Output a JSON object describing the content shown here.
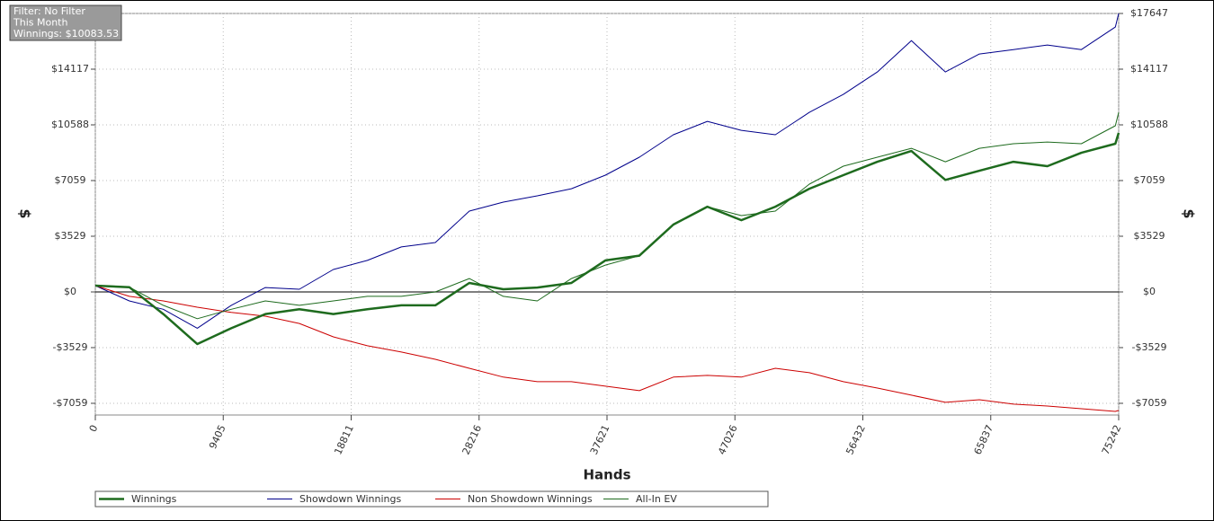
{
  "chart_data": {
    "type": "line",
    "filter": [
      "Filter: No Filter",
      "This Month",
      "Winnings: $10083.53"
    ],
    "x_label": "Hands",
    "y_label": "$",
    "x": [
      0,
      2500,
      5000,
      7500,
      10000,
      12500,
      15000,
      17500,
      20000,
      22500,
      25000,
      27500,
      30000,
      32500,
      35000,
      37500,
      40000,
      42500,
      45000,
      47500,
      50000,
      52500,
      55000,
      57500,
      60000,
      62500,
      65000,
      67500,
      70000,
      72500,
      75000,
      75242
    ],
    "series": [
      {
        "name": "Winnings",
        "color": "#1e6b1e",
        "width": 2.5,
        "values": [
          400,
          300,
          -1400,
          -3300,
          -2300,
          -1400,
          -1100,
          -1400,
          -1100,
          -850,
          -850,
          570,
          170,
          280,
          570,
          2000,
          2300,
          4270,
          5400,
          4550,
          5400,
          6540,
          7400,
          8250,
          8930,
          7100,
          7680,
          8250,
          7970,
          8820,
          9390,
          10083
        ]
      },
      {
        "name": "Showdown Winnings",
        "color": "#00008b",
        "width": 1,
        "values": [
          400,
          -570,
          -1100,
          -2300,
          -850,
          280,
          170,
          1420,
          2000,
          2850,
          3130,
          5120,
          5690,
          6090,
          6540,
          7400,
          8540,
          9960,
          10810,
          10240,
          9960,
          11380,
          12520,
          13940,
          15930,
          13940,
          15080,
          15360,
          15650,
          15360,
          16790,
          17647
        ]
      },
      {
        "name": "Non Showdown Winnings",
        "color": "#cc0000",
        "width": 1,
        "values": [
          400,
          -280,
          -570,
          -970,
          -1300,
          -1540,
          -2000,
          -2850,
          -3410,
          -3810,
          -4270,
          -4840,
          -5400,
          -5690,
          -5690,
          -5970,
          -6260,
          -5400,
          -5290,
          -5400,
          -4840,
          -5120,
          -5690,
          -6090,
          -6540,
          -7000,
          -6830,
          -7110,
          -7230,
          -7400,
          -7570,
          -7510
        ]
      },
      {
        "name": "All-In EV",
        "color": "#1e6b1e",
        "width": 1,
        "values": [
          400,
          300,
          -850,
          -1700,
          -1100,
          -570,
          -850,
          -570,
          -280,
          -280,
          0,
          850,
          -280,
          -570,
          850,
          1700,
          2300,
          4270,
          5400,
          4840,
          5120,
          6830,
          7970,
          8540,
          9100,
          8250,
          9100,
          9390,
          9500,
          9390,
          10530,
          11380
        ]
      }
    ],
    "xlim": [
      0,
      75242
    ],
    "xticks": [
      0,
      9405,
      18811,
      28216,
      37621,
      47026,
      56432,
      65837,
      75242
    ],
    "ylim": [
      -7800,
      17647
    ],
    "yticks": [
      {
        "value": -7059,
        "label": "-$7059"
      },
      {
        "value": -3529,
        "label": "-$3529"
      },
      {
        "value": 0,
        "label": "$0"
      },
      {
        "value": 3529,
        "label": "$3529"
      },
      {
        "value": 7059,
        "label": "$7059"
      },
      {
        "value": 10588,
        "label": "$10588"
      },
      {
        "value": 14117,
        "label": "$14117"
      },
      {
        "value": 17647,
        "label": "$17647"
      }
    ],
    "grid": true
  }
}
